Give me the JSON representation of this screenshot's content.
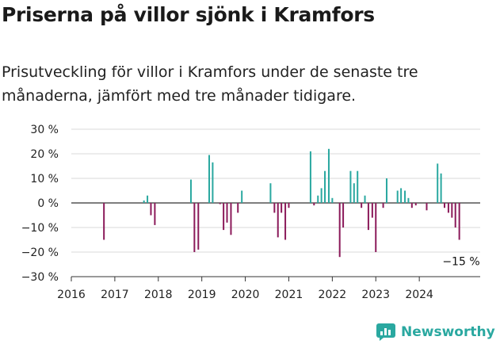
{
  "header": {
    "title": "Priserna på villor sjönk i Kramfors",
    "subtitle": "Prisutveckling för villor i Kramfors under de senaste tre månaderna, jämfört med tre månader tidigare."
  },
  "brand": {
    "name": "Newsworthy",
    "icon": "newsworthy-logo-icon",
    "color": "#2aa8a0"
  },
  "chart_data": {
    "type": "bar",
    "unit": "%",
    "ylim": [
      -30,
      30
    ],
    "xlim": [
      2016,
      2025.4
    ],
    "yticks": [
      {
        "value": 30,
        "label": "30 %"
      },
      {
        "value": 20,
        "label": "20 %"
      },
      {
        "value": 10,
        "label": "10 %"
      },
      {
        "value": 0,
        "label": "0 %"
      },
      {
        "value": -10,
        "label": "−10 %"
      },
      {
        "value": -20,
        "label": "−20 %"
      },
      {
        "value": -30,
        "label": "−30 %"
      }
    ],
    "xticks": [
      "2016",
      "2017",
      "2018",
      "2019",
      "2020",
      "2021",
      "2022",
      "2023",
      "2024"
    ],
    "colors": {
      "positive": "#2aa8a0",
      "negative": "#8b1a5a"
    },
    "grid": true,
    "annotation": {
      "text": "−15 %"
    },
    "points": [
      {
        "x": 2016.75,
        "y": -15
      },
      {
        "x": 2017.67,
        "y": 1
      },
      {
        "x": 2017.75,
        "y": 3
      },
      {
        "x": 2017.83,
        "y": -5
      },
      {
        "x": 2017.92,
        "y": -9
      },
      {
        "x": 2018.75,
        "y": 9.5
      },
      {
        "x": 2018.83,
        "y": -20
      },
      {
        "x": 2018.92,
        "y": -19
      },
      {
        "x": 2019.17,
        "y": 19.5
      },
      {
        "x": 2019.25,
        "y": 16.5
      },
      {
        "x": 2019.42,
        "y": -0.5
      },
      {
        "x": 2019.5,
        "y": -11
      },
      {
        "x": 2019.58,
        "y": -8
      },
      {
        "x": 2019.67,
        "y": -13
      },
      {
        "x": 2019.83,
        "y": -4
      },
      {
        "x": 2019.92,
        "y": 5
      },
      {
        "x": 2020.58,
        "y": 8
      },
      {
        "x": 2020.67,
        "y": -4
      },
      {
        "x": 2020.75,
        "y": -14
      },
      {
        "x": 2020.83,
        "y": -4
      },
      {
        "x": 2020.92,
        "y": -15
      },
      {
        "x": 2021.0,
        "y": -2
      },
      {
        "x": 2021.5,
        "y": 21
      },
      {
        "x": 2021.58,
        "y": -1
      },
      {
        "x": 2021.67,
        "y": 3
      },
      {
        "x": 2021.75,
        "y": 6
      },
      {
        "x": 2021.83,
        "y": 13
      },
      {
        "x": 2021.92,
        "y": 22
      },
      {
        "x": 2022.0,
        "y": 2
      },
      {
        "x": 2022.17,
        "y": -22
      },
      {
        "x": 2022.25,
        "y": -10
      },
      {
        "x": 2022.42,
        "y": 13
      },
      {
        "x": 2022.5,
        "y": 8
      },
      {
        "x": 2022.58,
        "y": 13
      },
      {
        "x": 2022.67,
        "y": -2
      },
      {
        "x": 2022.75,
        "y": 3
      },
      {
        "x": 2022.83,
        "y": -11
      },
      {
        "x": 2022.92,
        "y": -6
      },
      {
        "x": 2023.0,
        "y": -20
      },
      {
        "x": 2023.17,
        "y": -2
      },
      {
        "x": 2023.25,
        "y": 10
      },
      {
        "x": 2023.5,
        "y": 5
      },
      {
        "x": 2023.58,
        "y": 6
      },
      {
        "x": 2023.67,
        "y": 5
      },
      {
        "x": 2023.75,
        "y": 2
      },
      {
        "x": 2023.83,
        "y": -2
      },
      {
        "x": 2023.92,
        "y": -1
      },
      {
        "x": 2024.17,
        "y": -3
      },
      {
        "x": 2024.42,
        "y": 16
      },
      {
        "x": 2024.5,
        "y": 12
      },
      {
        "x": 2024.58,
        "y": -2
      },
      {
        "x": 2024.67,
        "y": -4
      },
      {
        "x": 2024.75,
        "y": -6
      },
      {
        "x": 2024.83,
        "y": -10
      },
      {
        "x": 2024.92,
        "y": -15
      }
    ]
  }
}
